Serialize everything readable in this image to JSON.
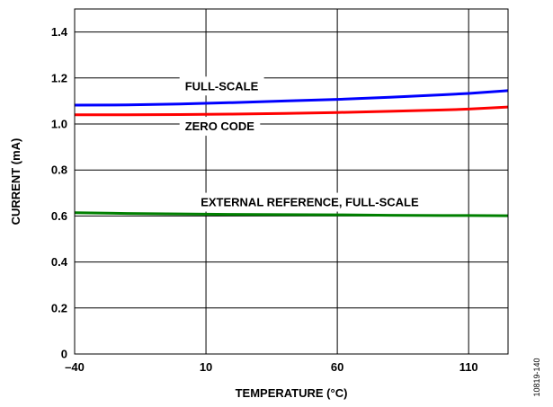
{
  "chart_data": {
    "type": "line",
    "title": "",
    "xlabel": "TEMPERATURE (°C)",
    "ylabel": "CURRENT (mA)",
    "xlim": [
      -40,
      125
    ],
    "ylim": [
      0,
      1.5
    ],
    "xticks": [
      -40,
      10,
      60,
      110
    ],
    "xtick_labels": [
      "–40",
      "10",
      "60",
      "110"
    ],
    "yticks": [
      0,
      0.2,
      0.4,
      0.6,
      0.8,
      1.0,
      1.2,
      1.4
    ],
    "ytick_labels": [
      "0",
      "0.2",
      "0.4",
      "0.6",
      "0.8",
      "1.0",
      "1.2",
      "1.4"
    ],
    "grid": true,
    "series": [
      {
        "name": "FULL-SCALE",
        "color": "#0000ff",
        "x": [
          -40,
          -20,
          0,
          20,
          40,
          60,
          80,
          100,
          110,
          125
        ],
        "y": [
          1.082,
          1.083,
          1.087,
          1.093,
          1.1,
          1.107,
          1.116,
          1.127,
          1.133,
          1.145
        ]
      },
      {
        "name": "ZERO CODE",
        "color": "#ff0000",
        "x": [
          -40,
          -20,
          0,
          20,
          40,
          60,
          80,
          100,
          110,
          125
        ],
        "y": [
          1.04,
          1.04,
          1.041,
          1.043,
          1.046,
          1.05,
          1.055,
          1.061,
          1.065,
          1.074
        ]
      },
      {
        "name": "EXTERNAL REFERENCE, FULL-SCALE",
        "color": "#008000",
        "x": [
          -40,
          -20,
          0,
          20,
          40,
          60,
          80,
          100,
          110,
          125
        ],
        "y": [
          0.614,
          0.611,
          0.609,
          0.607,
          0.606,
          0.605,
          0.603,
          0.602,
          0.602,
          0.601
        ]
      }
    ],
    "annotations": [
      {
        "text": "FULL-SCALE",
        "series": 0,
        "x": 2,
        "y": 1.165
      },
      {
        "text": "ZERO CODE",
        "series": 1,
        "x": 2,
        "y": 0.99
      },
      {
        "text": "EXTERNAL REFERENCE, FULL-SCALE",
        "series": 2,
        "x": 8,
        "y": 0.66
      }
    ],
    "figure_id": "10819-140"
  }
}
